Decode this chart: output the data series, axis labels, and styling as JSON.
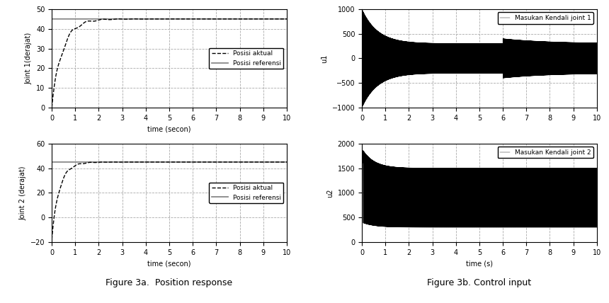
{
  "fig_width": 8.6,
  "fig_height": 4.28,
  "dpi": 100,
  "background_color": "#ffffff",
  "joint1_ref": 45.0,
  "joint1_ylim": [
    0,
    50
  ],
  "joint1_yticks": [
    0,
    10,
    20,
    30,
    40,
    50
  ],
  "joint1_ylabel": "Joint 1(derajat)",
  "joint1_xlabel": "time (secon)",
  "joint2_ref": 45.0,
  "joint2_ylim": [
    -20,
    60
  ],
  "joint2_yticks": [
    -20,
    0,
    20,
    40,
    60
  ],
  "joint2_ylabel": "Joint 2 (derajat)",
  "joint2_xlabel": "time (secon)",
  "u1_ylim": [
    -1000,
    1000
  ],
  "u1_yticks": [
    -1000,
    -500,
    0,
    500,
    1000
  ],
  "u1_ylabel": "u1",
  "u1_legend": "Masukan Kendali joint 1",
  "u2_ylim": [
    0,
    2000
  ],
  "u2_yticks": [
    0,
    500,
    1000,
    1500,
    2000
  ],
  "u2_ylabel": "u2",
  "u2_legend": "Masukan Kendali joint 2",
  "u2_xlabel": "time (s)",
  "xlim": [
    0,
    10
  ],
  "xticks": [
    0,
    1,
    2,
    3,
    4,
    5,
    6,
    7,
    8,
    9,
    10
  ],
  "legend_posisi_aktual": "Posisi aktual",
  "legend_posisi_referensi": "Posisi referensi",
  "caption_left": "Figure 3a.  Position response",
  "caption_right": "Figure 3b. Control input",
  "line_color_ref": "#888888",
  "line_color_actual": "#000000",
  "line_color_u": "#000000",
  "grid_color": "#aaaaaa",
  "grid_style": "--"
}
